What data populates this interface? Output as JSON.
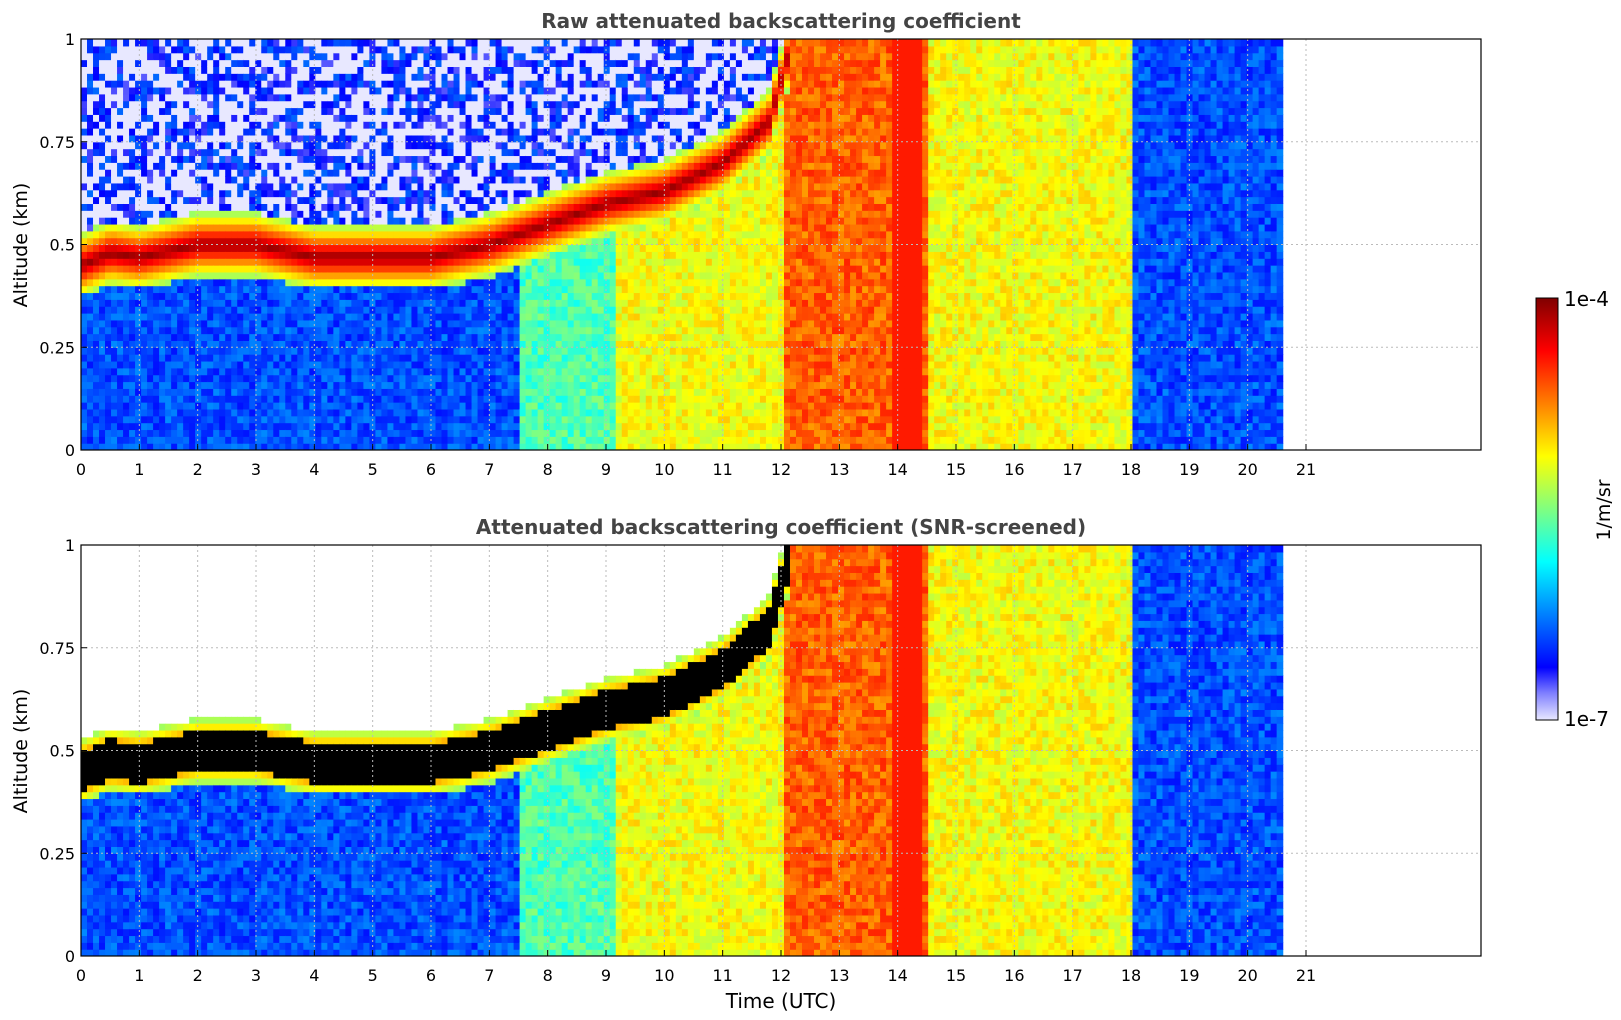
{
  "chart_data": [
    {
      "type": "heatmap",
      "title": "Raw attenuated backscattering coefficient",
      "ylabel": "Altitude (km)",
      "xlabel": "",
      "xlim": [
        0,
        24
      ],
      "ylim": [
        0,
        1
      ],
      "x_ticks": [
        "0",
        "1",
        "2",
        "3",
        "4",
        "5",
        "6",
        "7",
        "8",
        "9",
        "10",
        "11",
        "12",
        "13",
        "14",
        "15",
        "16",
        "17",
        "18",
        "19",
        "20",
        "21"
      ],
      "y_ticks": [
        "0",
        "0.25",
        "0.5",
        "0.75",
        "1"
      ],
      "grid": true,
      "data_end_time": 20.6,
      "log_scale": true,
      "cloud_layer_km": [
        [
          0.0,
          0.45
        ],
        [
          0.5,
          0.48
        ],
        [
          1.0,
          0.47
        ],
        [
          2.0,
          0.5
        ],
        [
          3.0,
          0.5
        ],
        [
          4.0,
          0.47
        ],
        [
          5.0,
          0.47
        ],
        [
          6.0,
          0.47
        ],
        [
          7.0,
          0.5
        ],
        [
          8.0,
          0.55
        ],
        [
          9.0,
          0.6
        ],
        [
          10.0,
          0.63
        ],
        [
          11.0,
          0.7
        ],
        [
          11.8,
          0.8
        ],
        [
          12.2,
          1.0
        ]
      ],
      "time_bands_utc": [
        {
          "start": 0.0,
          "end": 7.5,
          "level": "low"
        },
        {
          "start": 7.5,
          "end": 9.2,
          "level": "moderate"
        },
        {
          "start": 9.2,
          "end": 12.0,
          "level": "high"
        },
        {
          "start": 12.0,
          "end": 14.5,
          "level": "very-high"
        },
        {
          "start": 14.5,
          "end": 18.0,
          "level": "high"
        },
        {
          "start": 18.0,
          "end": 20.6,
          "level": "low"
        }
      ]
    },
    {
      "type": "heatmap",
      "title": "Attenuated backscattering coefficient (SNR-screened)",
      "ylabel": "Altitude (km)",
      "xlabel": "Time (UTC)",
      "xlim": [
        0,
        24
      ],
      "ylim": [
        0,
        1
      ],
      "x_ticks": [
        "0",
        "1",
        "2",
        "3",
        "4",
        "5",
        "6",
        "7",
        "8",
        "9",
        "10",
        "11",
        "12",
        "13",
        "14",
        "15",
        "16",
        "17",
        "18",
        "19",
        "20",
        "21"
      ],
      "y_ticks": [
        "0",
        "0.25",
        "0.5",
        "0.75",
        "1"
      ],
      "grid": true,
      "data_end_time": 20.6,
      "log_scale": true,
      "screened": true
    }
  ],
  "colorbar": {
    "label": "1/m/sr",
    "max_label": "1e-4",
    "min_label": "1e-7",
    "scale": "log",
    "colormap": [
      "#e8e8ff",
      "#8080ff",
      "#0000ff",
      "#0040ff",
      "#0080ff",
      "#00c0ff",
      "#00ffff",
      "#40ffc0",
      "#80ff80",
      "#c0ff40",
      "#ffff00",
      "#ffc000",
      "#ff8000",
      "#ff4000",
      "#ff0000",
      "#c00000",
      "#800000"
    ]
  }
}
